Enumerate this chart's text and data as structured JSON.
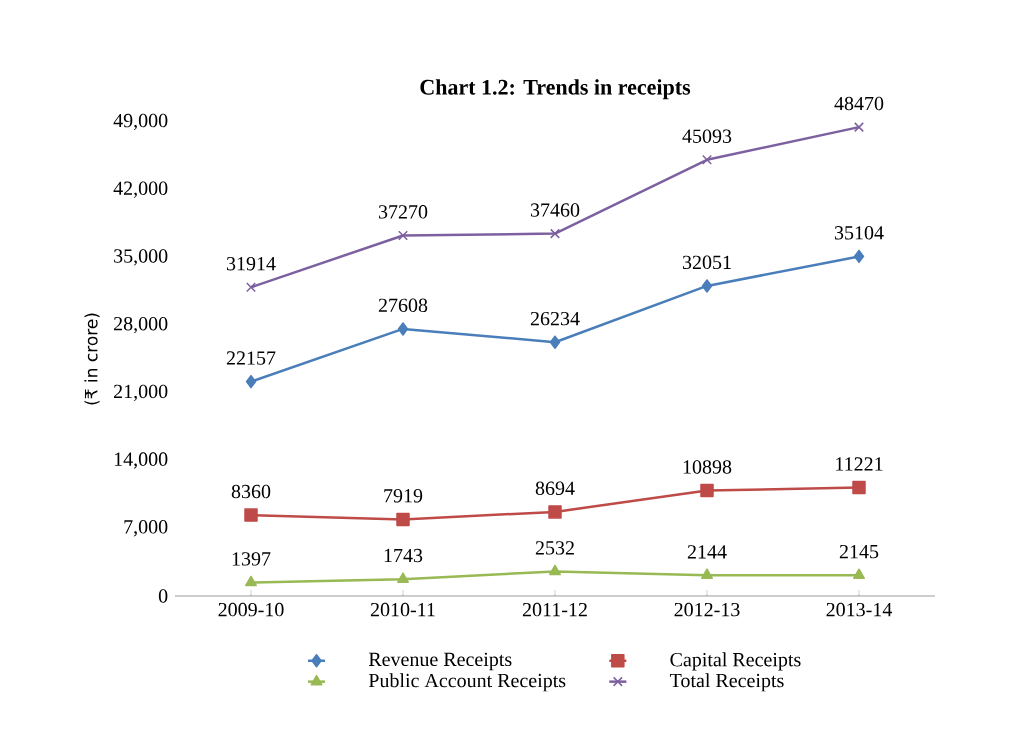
{
  "chart_data": {
    "type": "line",
    "title": "Chart 1.2: Trends in receipts",
    "ylabel": "(₹ in crore)",
    "categories": [
      "2009-10",
      "2010-11",
      "2011-12",
      "2012-13",
      "2013-14"
    ],
    "series": [
      {
        "name": "Revenue Receipts",
        "color": "#4a7ebb",
        "marker": "diamond",
        "values": [
          22157,
          27608,
          26234,
          32051,
          35104
        ]
      },
      {
        "name": "Capital Receipts",
        "color": "#be4b48",
        "marker": "square",
        "values": [
          8360,
          7919,
          8694,
          10898,
          11221
        ]
      },
      {
        "name": "Public Account Receipts",
        "color": "#98b954",
        "marker": "triangle",
        "values": [
          1397,
          1743,
          2532,
          2144,
          2145
        ]
      },
      {
        "name": "Total Receipts",
        "color": "#7d60a0",
        "marker": "cross",
        "values": [
          31914,
          37270,
          37460,
          45093,
          48470
        ]
      }
    ],
    "ylim": [
      0,
      49000
    ],
    "yticks": [
      {
        "value": 0,
        "label": "0"
      },
      {
        "value": 7000,
        "label": "7,000"
      },
      {
        "value": 14000,
        "label": "14,000"
      },
      {
        "value": 21000,
        "label": "21,000"
      },
      {
        "value": 28000,
        "label": "28,000"
      },
      {
        "value": 35000,
        "label": "35,000"
      },
      {
        "value": 42000,
        "label": "42,000"
      },
      {
        "value": 49000,
        "label": "49,000"
      }
    ],
    "data_labels": true,
    "legend": "bottom",
    "grid": false
  }
}
